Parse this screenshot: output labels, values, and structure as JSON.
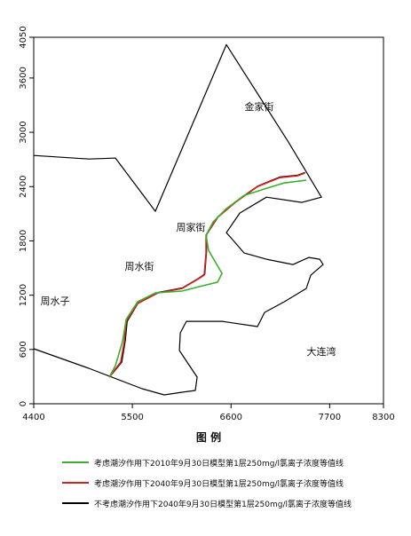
{
  "chart_data": {
    "type": "line",
    "xlim": [
      4400,
      8300
    ],
    "ylim": [
      0,
      4050
    ],
    "xticks": [
      4400,
      5500,
      6600,
      7700,
      8300
    ],
    "yticks": [
      0,
      600,
      1200,
      1800,
      2400,
      3000,
      3600,
      4050
    ],
    "legend_title": "图  例",
    "annotations": [
      "金家街",
      "周家街",
      "周水街",
      "周水子",
      "大连湾"
    ],
    "coastline": {
      "color": "#000000",
      "x": [
        4400,
        5014,
        5311,
        5756,
        6548,
        7241,
        7608,
        7390,
        6994,
        6697,
        6548,
        6618,
        6746,
        6994,
        7291,
        7469,
        7588,
        7627,
        7489,
        7439,
        7192,
        6974,
        6895,
        6499,
        6103,
        6034,
        6024,
        6123,
        6222,
        6202,
        6053,
        5855,
        5608,
        5014,
        4400
      ],
      "y": [
        2744,
        2705,
        2715,
        2127,
        3969,
        2891,
        2283,
        2225,
        2283,
        2107,
        1891,
        1813,
        1666,
        1597,
        1539,
        1617,
        1597,
        1539,
        1421,
        1274,
        1127,
        1009,
        853,
        911,
        911,
        784,
        588,
        441,
        294,
        147,
        127,
        98,
        167,
        392,
        608
      ]
    },
    "series": [
      {
        "name": "考虑潮汐作用下2010年9月30日模型第1层250mg/l氯离子浓度等值线",
        "color": "#3cb02c",
        "x": [
          5242,
          5311,
          5390,
          5430,
          5558,
          5756,
          6053,
          6281,
          6449,
          6499,
          6430,
          6350,
          6321,
          6400,
          6548,
          6746,
          6994,
          7192,
          7439
        ],
        "y": [
          294,
          421,
          686,
          931,
          1127,
          1225,
          1245,
          1303,
          1343,
          1441,
          1558,
          1695,
          1862,
          2009,
          2156,
          2303,
          2381,
          2440,
          2470
        ]
      },
      {
        "name": "考虑潮汐作用下2040年9月30日模型第1层250mg/l氯离子浓度等值线",
        "color": "#d42020",
        "x": [
          5242,
          5370,
          5410,
          5430,
          5558,
          5786,
          6053,
          6222,
          6301,
          6321,
          6321,
          6449,
          6647,
          6895,
          7142,
          7340,
          7420
        ],
        "y": [
          294,
          461,
          686,
          911,
          1107,
          1225,
          1274,
          1372,
          1421,
          1666,
          1862,
          2058,
          2225,
          2401,
          2499,
          2519,
          2548
        ]
      },
      {
        "name": "不考虑潮汐作用下2040年9月30日模型第1层250mg/l氯离子浓度等值线",
        "color": "#000000",
        "x": [
          5242,
          5380,
          5420,
          5440,
          5560,
          5790,
          6060,
          6230,
          6305,
          6325,
          6325,
          6455,
          6650,
          6900,
          7145,
          7345,
          7425
        ],
        "y": [
          294,
          461,
          700,
          911,
          1110,
          1230,
          1280,
          1380,
          1430,
          1680,
          1870,
          2065,
          2230,
          2405,
          2505,
          2525,
          2555
        ]
      }
    ]
  }
}
